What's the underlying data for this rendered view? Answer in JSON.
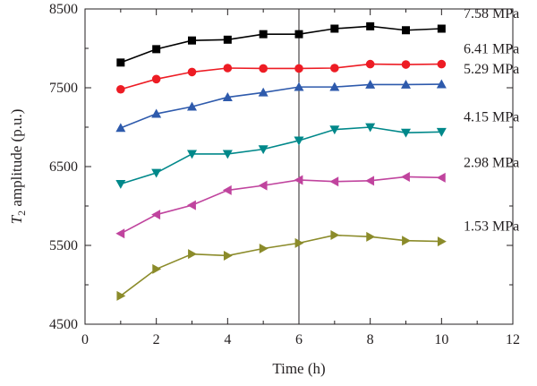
{
  "chart_data": {
    "type": "line",
    "xlabel": "Time (h)",
    "ylabel_symbol": "T",
    "ylabel_subscript": "2",
    "ylabel_rest": " amplitude (p.u.)",
    "xlim": [
      0,
      12
    ],
    "ylim": [
      4500,
      8500
    ],
    "xticks": [
      0,
      2,
      4,
      6,
      8,
      10,
      12
    ],
    "yticks": [
      4500,
      5500,
      6500,
      7500,
      8500
    ],
    "grid": false,
    "reference_line_x": 6,
    "x": [
      1,
      2,
      3,
      4,
      5,
      6,
      7,
      8,
      9,
      10
    ],
    "series": [
      {
        "name": "7.58 MPa",
        "color": "#000000",
        "marker": "square",
        "values": [
          7820,
          7990,
          8100,
          8110,
          8180,
          8180,
          8250,
          8280,
          8230,
          8250
        ]
      },
      {
        "name": "6.41 MPa",
        "color": "#ed1c24",
        "marker": "circle",
        "values": [
          7480,
          7610,
          7700,
          7750,
          7745,
          7745,
          7750,
          7800,
          7795,
          7800
        ]
      },
      {
        "name": "5.29 MPa",
        "color": "#2e5aac",
        "marker": "triangle-up",
        "values": [
          6990,
          7170,
          7260,
          7380,
          7440,
          7510,
          7510,
          7540,
          7540,
          7545
        ]
      },
      {
        "name": "4.15 MPa",
        "color": "#00888a",
        "marker": "triangle-down",
        "values": [
          6280,
          6420,
          6660,
          6660,
          6720,
          6830,
          6970,
          7000,
          6930,
          6940
        ]
      },
      {
        "name": "2.98 MPa",
        "color": "#c0449e",
        "marker": "triangle-left",
        "values": [
          5650,
          5890,
          6010,
          6200,
          6260,
          6330,
          6310,
          6320,
          6370,
          6360
        ]
      },
      {
        "name": "1.53 MPa",
        "color": "#8b8b2a",
        "marker": "triangle-right",
        "values": [
          4860,
          5200,
          5390,
          5370,
          5460,
          5530,
          5630,
          5610,
          5560,
          5550
        ]
      }
    ]
  }
}
